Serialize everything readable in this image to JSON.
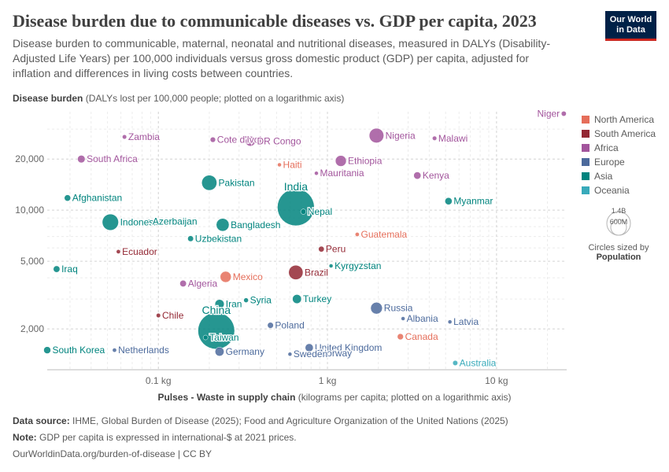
{
  "header": {
    "title": "Disease burden due to communicable diseases vs. GDP per capita, 2023",
    "subtitle": "Disease burden to communicable, maternal, neonatal and nutritional diseases, measured in DALYs (Disability-Adjusted Life Years) per 100,000 individuals versus gross domestic product (GDP) per capita, adjusted for inflation and differences in living costs between countries.",
    "logo_line1": "Our World",
    "logo_line2": "in Data"
  },
  "axis_titles": {
    "y_bold": "Disease burden",
    "y_rest": " (DALYs lost per 100,000 people; plotted on a logarithmic axis)",
    "x_bold": "Pulses - Waste in supply chain",
    "x_rest": " (kilograms per capita; plotted on a logarithmic axis)"
  },
  "footer": {
    "source_label": "Data source:",
    "source_text": " IHME, Global Burden of Disease (2025); Food and Agriculture Organization of the United Nations (2025)",
    "note_label": "Note:",
    "note_text": " GDP per capita is expressed in international-$ at 2021 prices.",
    "link_text": "OurWorldinData.org/burden-of-disease",
    "license": " | CC BY"
  },
  "legend": {
    "items": [
      {
        "name": "North America",
        "color": "#e56e5a"
      },
      {
        "name": "South America",
        "color": "#932834"
      },
      {
        "name": "Africa",
        "color": "#a2559c"
      },
      {
        "name": "Europe",
        "color": "#4c6a9c"
      },
      {
        "name": "Asia",
        "color": "#00847e"
      },
      {
        "name": "Oceania",
        "color": "#38aaba"
      }
    ],
    "size_values": [
      "1.4B",
      "600M"
    ],
    "size_caption": "Circles sized by",
    "size_variable": "Population"
  },
  "chart_data": {
    "type": "scatter",
    "x_scale": "log",
    "y_scale": "log",
    "xlim": [
      0.022,
      26
    ],
    "ylim": [
      1150,
      38000
    ],
    "x_ticks": [
      {
        "value": 0.1,
        "label": "0.1 kg"
      },
      {
        "value": 1,
        "label": "1 kg"
      },
      {
        "value": 10,
        "label": "10 kg"
      }
    ],
    "y_ticks": [
      {
        "value": 2000,
        "label": "2,000"
      },
      {
        "value": 5000,
        "label": "5,000"
      },
      {
        "value": 10000,
        "label": "10,000"
      },
      {
        "value": 20000,
        "label": "20,000"
      }
    ],
    "grid": true,
    "legend_position": "right",
    "colors": {
      "North America": "#e56e5a",
      "South America": "#932834",
      "Africa": "#a2559c",
      "Europe": "#4c6a9c",
      "Asia": "#00847e",
      "Oceania": "#38aaba"
    },
    "points": [
      {
        "label": "Niger",
        "x": 25,
        "y": 37000,
        "region": "Africa",
        "pop": 26
      },
      {
        "label": "Zambia",
        "x": 0.063,
        "y": 27000,
        "region": "Africa",
        "pop": 20
      },
      {
        "label": "Cote d'Ivoire",
        "x": 0.21,
        "y": 26000,
        "region": "Africa",
        "pop": 29
      },
      {
        "label": "DR Congo",
        "x": 0.35,
        "y": 25500,
        "region": "Africa",
        "pop": 105
      },
      {
        "label": "Nigeria",
        "x": 1.95,
        "y": 27500,
        "region": "Africa",
        "pop": 223
      },
      {
        "label": "Malawi",
        "x": 4.3,
        "y": 26500,
        "region": "Africa",
        "pop": 20
      },
      {
        "label": "South Africa",
        "x": 0.035,
        "y": 20000,
        "region": "Africa",
        "pop": 60
      },
      {
        "label": "Haiti",
        "x": 0.52,
        "y": 18500,
        "region": "North America",
        "pop": 11
      },
      {
        "label": "Ethiopia",
        "x": 1.2,
        "y": 19500,
        "region": "Africa",
        "pop": 126
      },
      {
        "label": "Mauritania",
        "x": 0.86,
        "y": 16500,
        "region": "Africa",
        "pop": 5
      },
      {
        "label": "Kenya",
        "x": 3.4,
        "y": 16000,
        "region": "Africa",
        "pop": 55
      },
      {
        "label": "Pakistan",
        "x": 0.2,
        "y": 14500,
        "region": "Asia",
        "pop": 240
      },
      {
        "label": "Afghanistan",
        "x": 0.029,
        "y": 11800,
        "region": "Asia",
        "pop": 42
      },
      {
        "label": "Myanmar",
        "x": 5.2,
        "y": 11300,
        "region": "Asia",
        "pop": 54
      },
      {
        "label": "India",
        "x": 0.65,
        "y": 10400,
        "region": "Asia",
        "pop": 1430
      },
      {
        "label": "Nepal",
        "x": 0.72,
        "y": 9800,
        "region": "Asia",
        "pop": 30
      },
      {
        "label": "Indonesia",
        "x": 0.052,
        "y": 8500,
        "region": "Asia",
        "pop": 277
      },
      {
        "label": "Azerbaijan",
        "x": 0.088,
        "y": 8600,
        "region": "Asia",
        "pop": 10
      },
      {
        "label": "Bangladesh",
        "x": 0.24,
        "y": 8200,
        "region": "Asia",
        "pop": 173
      },
      {
        "label": "Uzbekistan",
        "x": 0.155,
        "y": 6800,
        "region": "Asia",
        "pop": 35
      },
      {
        "label": "Guatemala",
        "x": 1.5,
        "y": 7200,
        "region": "North America",
        "pop": 18
      },
      {
        "label": "Ecuador",
        "x": 0.058,
        "y": 5700,
        "region": "South America",
        "pop": 18
      },
      {
        "label": "Peru",
        "x": 0.92,
        "y": 5900,
        "region": "South America",
        "pop": 34
      },
      {
        "label": "Iraq",
        "x": 0.025,
        "y": 4500,
        "region": "Asia",
        "pop": 45
      },
      {
        "label": "Kyrgyzstan",
        "x": 1.05,
        "y": 4700,
        "region": "Asia",
        "pop": 7
      },
      {
        "label": "Mexico",
        "x": 0.25,
        "y": 4050,
        "region": "North America",
        "pop": 128
      },
      {
        "label": "Brazil",
        "x": 0.65,
        "y": 4300,
        "region": "South America",
        "pop": 216
      },
      {
        "label": "Algeria",
        "x": 0.14,
        "y": 3700,
        "region": "Africa",
        "pop": 45
      },
      {
        "label": "Turkey",
        "x": 0.66,
        "y": 3000,
        "region": "Asia",
        "pop": 85
      },
      {
        "label": "Syria",
        "x": 0.33,
        "y": 2950,
        "region": "Asia",
        "pop": 23
      },
      {
        "label": "Iran",
        "x": 0.23,
        "y": 2800,
        "region": "Asia",
        "pop": 89
      },
      {
        "label": "Russia",
        "x": 1.95,
        "y": 2650,
        "region": "Europe",
        "pop": 144
      },
      {
        "label": "Chile",
        "x": 0.1,
        "y": 2400,
        "region": "South America",
        "pop": 20
      },
      {
        "label": "Albania",
        "x": 2.8,
        "y": 2300,
        "region": "Europe",
        "pop": 3
      },
      {
        "label": "Latvia",
        "x": 5.3,
        "y": 2200,
        "region": "Europe",
        "pop": 2
      },
      {
        "label": "Poland",
        "x": 0.46,
        "y": 2100,
        "region": "Europe",
        "pop": 37
      },
      {
        "label": "China",
        "x": 0.22,
        "y": 1950,
        "region": "Asia",
        "pop": 1410
      },
      {
        "label": "Canada",
        "x": 2.7,
        "y": 1800,
        "region": "North America",
        "pop": 39
      },
      {
        "label": "Taiwan",
        "x": 0.19,
        "y": 1780,
        "region": "Asia",
        "pop": 24
      },
      {
        "label": "United Kingdom",
        "x": 0.78,
        "y": 1550,
        "region": "Europe",
        "pop": 68
      },
      {
        "label": "South Korea",
        "x": 0.022,
        "y": 1500,
        "region": "Asia",
        "pop": 52
      },
      {
        "label": "Netherlands",
        "x": 0.055,
        "y": 1500,
        "region": "Europe",
        "pop": 18
      },
      {
        "label": "Germany",
        "x": 0.23,
        "y": 1470,
        "region": "Europe",
        "pop": 84
      },
      {
        "label": "Norway",
        "x": 0.86,
        "y": 1440,
        "region": "Europe",
        "pop": 5
      },
      {
        "label": "Sweden",
        "x": 0.6,
        "y": 1420,
        "region": "Europe",
        "pop": 10
      },
      {
        "label": "Australia",
        "x": 5.7,
        "y": 1260,
        "region": "Oceania",
        "pop": 27
      }
    ]
  }
}
